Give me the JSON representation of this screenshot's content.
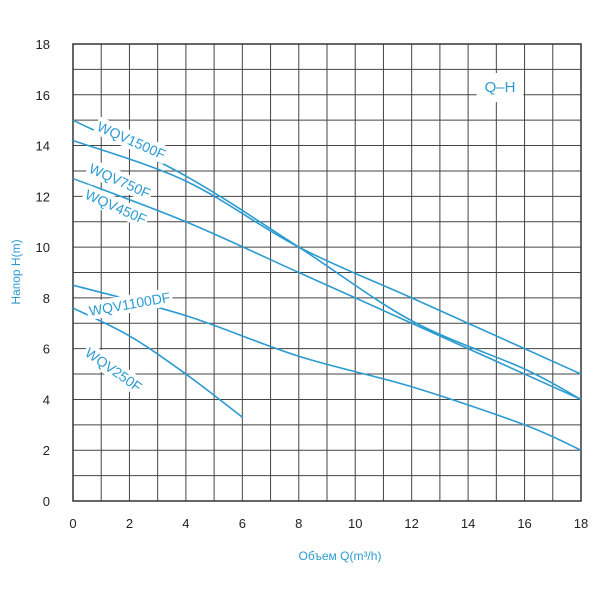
{
  "chart_data": {
    "type": "line",
    "badge": "Q–H",
    "xlabel": "Объем Q(m³/h)",
    "ylabel": "Напор H(m)",
    "xlim": [
      0,
      18
    ],
    "ylim": [
      0,
      18
    ],
    "grid": true,
    "xticks": [
      "0",
      "2",
      "4",
      "6",
      "8",
      "10",
      "12",
      "14",
      "16",
      "18"
    ],
    "yticks": [
      "0",
      "2",
      "4",
      "6",
      "8",
      "10",
      "12",
      "14",
      "16",
      "18"
    ],
    "colors": {
      "line": "#2b9bd1",
      "label": "#2b9bd1",
      "grid": "#444444"
    },
    "series": [
      {
        "name": "WQV1500F",
        "x": [
          0,
          4,
          8,
          12,
          16,
          18
        ],
        "y": [
          15.0,
          12.8,
          10.0,
          7.1,
          5.2,
          4.0
        ]
      },
      {
        "name": "WQV750F",
        "x": [
          0,
          4,
          8,
          12,
          16,
          18
        ],
        "y": [
          14.2,
          12.6,
          10.0,
          8.0,
          6.0,
          5.0
        ]
      },
      {
        "name": "WQV450F",
        "x": [
          0,
          4,
          8,
          12,
          16,
          18
        ],
        "y": [
          12.7,
          11.0,
          9.0,
          7.0,
          5.0,
          4.0
        ]
      },
      {
        "name": "WQV1100DF",
        "x": [
          0,
          4,
          8,
          12,
          16,
          18
        ],
        "y": [
          8.5,
          7.3,
          5.7,
          4.5,
          3.0,
          2.0
        ]
      },
      {
        "name": "WQV250F",
        "x": [
          0,
          2,
          4,
          6
        ],
        "y": [
          7.6,
          6.5,
          5.0,
          3.3
        ]
      }
    ]
  }
}
